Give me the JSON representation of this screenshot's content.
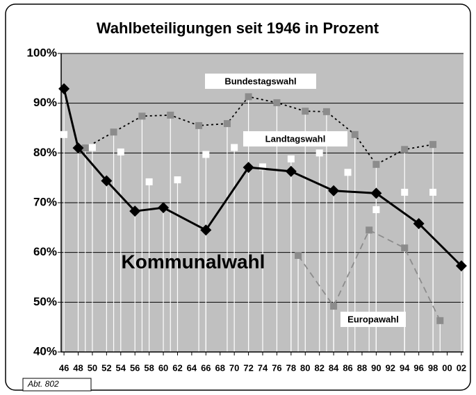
{
  "chart_data": {
    "type": "line",
    "title": "Wahlbeteiligungen seit 1946 in Prozent",
    "note": "Abt. 802",
    "xlim": [
      1945.6,
      2002.3
    ],
    "xticks": [
      {
        "value": 1946,
        "label": "46"
      },
      {
        "value": 1948,
        "label": "48"
      },
      {
        "value": 1950,
        "label": "50"
      },
      {
        "value": 1952,
        "label": "52"
      },
      {
        "value": 1954,
        "label": "54"
      },
      {
        "value": 1956,
        "label": "56"
      },
      {
        "value": 1958,
        "label": "58"
      },
      {
        "value": 1960,
        "label": "60"
      },
      {
        "value": 1962,
        "label": "62"
      },
      {
        "value": 1964,
        "label": "64"
      },
      {
        "value": 1966,
        "label": "66"
      },
      {
        "value": 1968,
        "label": "68"
      },
      {
        "value": 1970,
        "label": "70"
      },
      {
        "value": 1972,
        "label": "72"
      },
      {
        "value": 1974,
        "label": "74"
      },
      {
        "value": 1976,
        "label": "76"
      },
      {
        "value": 1978,
        "label": "78"
      },
      {
        "value": 1980,
        "label": "80"
      },
      {
        "value": 1982,
        "label": "82"
      },
      {
        "value": 1984,
        "label": "84"
      },
      {
        "value": 1986,
        "label": "86"
      },
      {
        "value": 1988,
        "label": "88"
      },
      {
        "value": 1990,
        "label": "90"
      },
      {
        "value": 1992,
        "label": "92"
      },
      {
        "value": 1994,
        "label": "94"
      },
      {
        "value": 1996,
        "label": "96"
      },
      {
        "value": 1998,
        "label": "98"
      },
      {
        "value": 2000,
        "label": "00"
      },
      {
        "value": 2002,
        "label": "02"
      }
    ],
    "ylim": [
      40,
      100
    ],
    "yticks": [
      {
        "value": 40,
        "label": "40%"
      },
      {
        "value": 50,
        "label": "50%"
      },
      {
        "value": 60,
        "label": "60%"
      },
      {
        "value": 70,
        "label": "70%"
      },
      {
        "value": 80,
        "label": "80%"
      },
      {
        "value": 90,
        "label": "90%"
      },
      {
        "value": 100,
        "label": "100%"
      }
    ],
    "grid": true,
    "series": [
      {
        "name": "Bundestagswahl",
        "color": "#8c8c8c",
        "line_color": "#000000",
        "line_style": "dotted",
        "marker": "square",
        "x": [
          1949,
          1953,
          1957,
          1961,
          1965,
          1969,
          1972,
          1976,
          1980,
          1983,
          1987,
          1990,
          1994,
          1998
        ],
        "values": [
          81.0,
          84.2,
          87.4,
          87.6,
          85.5,
          85.9,
          91.3,
          90.1,
          88.4,
          88.3,
          83.7,
          77.7,
          80.7,
          81.7
        ]
      },
      {
        "name": "Landtagswahl",
        "color": "#ffffff",
        "line_color": "#ffffff",
        "line_style": "none",
        "marker": "square",
        "x": [
          1946,
          1950,
          1954,
          1958,
          1962,
          1966,
          1970,
          1974,
          1978,
          1982,
          1986,
          1990,
          1994,
          1998
        ],
        "values": [
          83.7,
          81.1,
          80.2,
          74.2,
          74.6,
          79.7,
          81.1,
          77.2,
          78.8,
          80.0,
          76.1,
          68.6,
          72.1,
          72.1
        ]
      },
      {
        "name": "Kommunalwahl",
        "color": "#000000",
        "line_color": "#000000",
        "line_style": "solid",
        "marker": "diamond",
        "x": [
          1946,
          1948,
          1952,
          1956,
          1960,
          1966,
          1972,
          1978,
          1984,
          1990,
          1996,
          2002
        ],
        "values": [
          92.9,
          81.0,
          74.4,
          68.3,
          69.0,
          64.5,
          77.1,
          76.3,
          72.4,
          71.9,
          65.8,
          57.3
        ]
      },
      {
        "name": "Europawahl",
        "color": "#8c8c8c",
        "line_color": "#8c8c8c",
        "line_style": "dashed",
        "marker": "square",
        "x": [
          1979,
          1984,
          1989,
          1994,
          1999
        ],
        "values": [
          59.4,
          49.2,
          64.5,
          60.9,
          46.3
        ]
      }
    ]
  }
}
